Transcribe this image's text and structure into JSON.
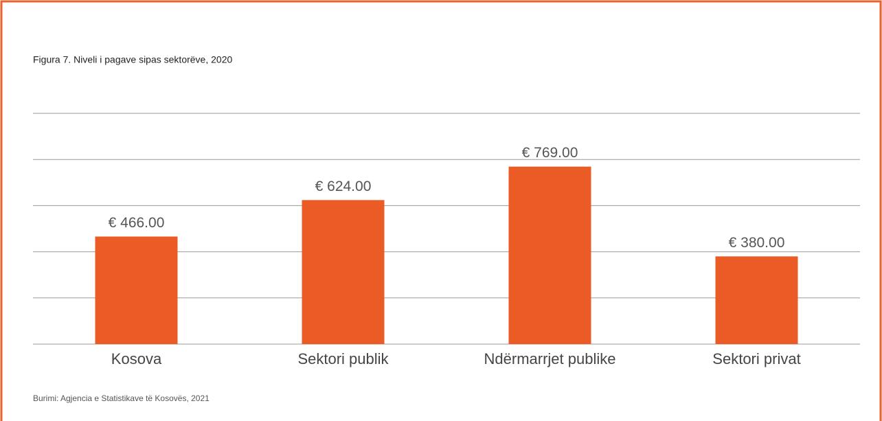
{
  "chart_data": {
    "type": "bar",
    "title": "Figura 7. Niveli i pagave sipas sektorëve, 2020",
    "categories": [
      "Kosova",
      "Sektori publik",
      "Ndërmarrjet publike",
      "Sektori privat"
    ],
    "values": [
      466,
      624,
      769,
      380
    ],
    "value_labels": [
      "€ 466.00",
      "€ 624.00",
      "€ 769.00",
      "€ 380.00"
    ],
    "color": "#eb5b25",
    "ylim": [
      0,
      1000
    ],
    "yticks": [
      0,
      200,
      400,
      600,
      800,
      1000
    ],
    "grid": true,
    "source": "Burimi: Agjencia e Statistikave të Kosovës, 2021"
  }
}
